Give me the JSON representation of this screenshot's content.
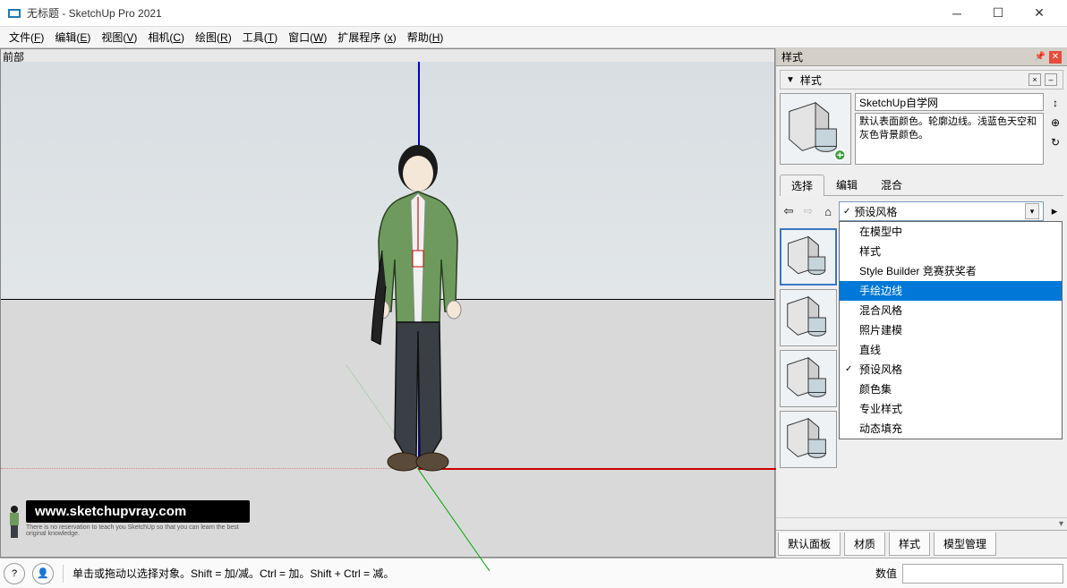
{
  "titlebar": {
    "title": "无标题 - SketchUp Pro 2021",
    "app_icon_color": "#1f7ab5"
  },
  "menubar": {
    "items": [
      {
        "label": "文件(F)",
        "key": "F"
      },
      {
        "label": "编辑(E)",
        "key": "E"
      },
      {
        "label": "视图(V)",
        "key": "V"
      },
      {
        "label": "相机(C)",
        "key": "C"
      },
      {
        "label": "绘图(R)",
        "key": "R"
      },
      {
        "label": "工具(T)",
        "key": "T"
      },
      {
        "label": "窗口(W)",
        "key": "W"
      },
      {
        "label": "扩展程序 (x)",
        "key": "x"
      },
      {
        "label": "帮助(H)",
        "key": "H"
      }
    ]
  },
  "viewport": {
    "view_label": "前部",
    "sky_color": "#dbe1e4",
    "ground_color": "#d9d9d9",
    "axis_red": "#cc0000",
    "axis_green": "#009900",
    "axis_blue": "#0000cc",
    "figure_shirt": "#6e9a5e",
    "figure_pants": "#3a3f45",
    "figure_skin": "#f4e7d8",
    "figure_hair": "#1a1a1a",
    "watermark_main": "www.sketchupvray.com",
    "watermark_sub": "There is no reservation to teach you SketchUp so that you can learn the best original knowledge."
  },
  "panel": {
    "title": "样式",
    "section_title": "样式",
    "style_name": "SketchUp自学网",
    "style_desc": "默认表面颜色。轮廓边线。浅蓝色天空和灰色背景颜色。",
    "tabs": [
      "选择",
      "编辑",
      "混合"
    ],
    "active_tab": 0,
    "dropdown_selected": "预设风格",
    "dropdown_items": [
      {
        "label": "在模型中",
        "checked": false
      },
      {
        "label": "样式",
        "checked": false
      },
      {
        "label": "Style Builder 竞赛获奖者",
        "checked": false
      },
      {
        "label": "手绘边线",
        "checked": false,
        "highlighted": true
      },
      {
        "label": "混合风格",
        "checked": false
      },
      {
        "label": "照片建模",
        "checked": false
      },
      {
        "label": "直线",
        "checked": false
      },
      {
        "label": "预设风格",
        "checked": true
      },
      {
        "label": "颜色集",
        "checked": false
      },
      {
        "label": "专业样式",
        "checked": false
      },
      {
        "label": "动态填充",
        "checked": false
      }
    ],
    "thumb_colors": {
      "box": "#e4e4e4",
      "cyl": "#c6d4db",
      "line": "#333"
    },
    "bottom_tabs": [
      "默认面板",
      "材质",
      "样式",
      "模型管理"
    ]
  },
  "statusbar": {
    "hint": "单击或拖动以选择对象。Shift = 加/减。Ctrl = 加。Shift + Ctrl = 减。",
    "value_label": "数值"
  }
}
